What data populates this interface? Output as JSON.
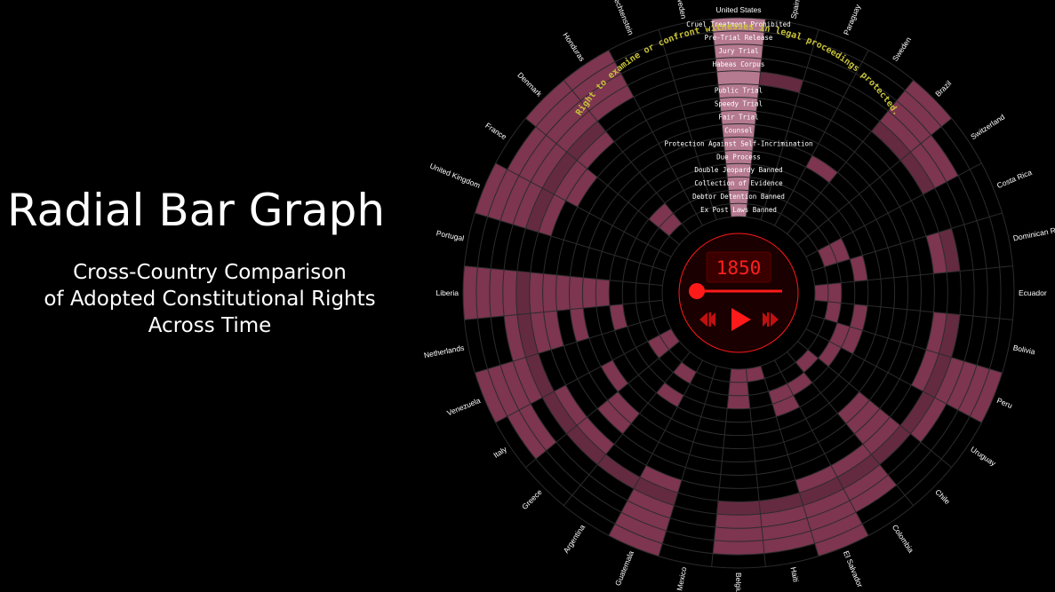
{
  "header": {
    "title": "Radial Bar Graph",
    "subtitle_lines": [
      "Cross-Country Comparison",
      "of Adopted Constitutional Rights",
      "Across Time"
    ]
  },
  "player": {
    "year": "1850",
    "slider_value": 0,
    "controls": [
      "step-back",
      "play",
      "step-forward"
    ]
  },
  "highlight": {
    "text": "Right to examine or confront witnesses in legal proceedings protected."
  },
  "colors": {
    "bar": "#7d3550",
    "bar_light": "#b57a90",
    "grid": "#2b2b2b",
    "highlight_ring": "#3c3c3c",
    "player_red": "#ff1a1a",
    "player_bg": "#3a0000",
    "highlight_text": "#c8c23a"
  },
  "chart_data": {
    "type": "radial-bar",
    "year": 1850,
    "countries": [
      "United States",
      "Spain",
      "Paraguay",
      "Sweden",
      "Brazil",
      "Switzerland",
      "Costa Rica",
      "Dominican Republic",
      "Ecuador",
      "Bolivia",
      "Peru",
      "Uruguay",
      "Chile",
      "Colombia",
      "El Salvador",
      "Haiti",
      "Belgium",
      "Mexico",
      "Guatemala",
      "Argentina",
      "Greece",
      "Italy",
      "Venezuela",
      "Netherlands",
      "Liberia",
      "Portugal",
      "United Kingdom",
      "France",
      "Denmark",
      "Honduras",
      "Liechtenstein",
      "Sweden"
    ],
    "rights": [
      "Cruel Treatment Prohibited",
      "Pre-Trial Release",
      "Jury Trial",
      "Habeas Corpus",
      "Right to examine or confront witnesses in legal proceedings protected.",
      "Public Trial",
      "Speedy Trial",
      "Fair Trial",
      "Counsel",
      "Protection Against Self-Incrimination",
      "Due Process",
      "Double Jeopardy Banned",
      "Collection of Evidence",
      "Debtor Detention Banned",
      "Ex Post Laws Banned"
    ],
    "highlighted_right": "Right to examine or confront witnesses in legal proceedings protected.",
    "adopted": [
      [
        1,
        1,
        1,
        1,
        1,
        1,
        1,
        1,
        1,
        1,
        1,
        1,
        1,
        1,
        1
      ],
      [
        0,
        0,
        0,
        0,
        1,
        0,
        0,
        0,
        0,
        0,
        0,
        0,
        0,
        0,
        0
      ],
      [
        0,
        0,
        0,
        0,
        0,
        0,
        0,
        0,
        0,
        0,
        0,
        0,
        0,
        0,
        0
      ],
      [
        0,
        0,
        0,
        0,
        0,
        0,
        0,
        0,
        0,
        1,
        0,
        0,
        0,
        0,
        0
      ],
      [
        1,
        1,
        1,
        1,
        1,
        0,
        0,
        0,
        0,
        0,
        0,
        0,
        0,
        0,
        0
      ],
      [
        0,
        0,
        1,
        1,
        1,
        0,
        0,
        0,
        0,
        0,
        0,
        0,
        0,
        0,
        0
      ],
      [
        0,
        0,
        0,
        0,
        0,
        0,
        0,
        0,
        0,
        0,
        0,
        0,
        1,
        1,
        0
      ],
      [
        0,
        0,
        0,
        0,
        1,
        1,
        0,
        0,
        0,
        0,
        0,
        1,
        0,
        0,
        0
      ],
      [
        0,
        0,
        0,
        0,
        0,
        0,
        0,
        0,
        0,
        0,
        0,
        0,
        0,
        1,
        1
      ],
      [
        0,
        0,
        0,
        0,
        1,
        1,
        0,
        0,
        0,
        0,
        0,
        1,
        0,
        1,
        0
      ],
      [
        1,
        1,
        1,
        1,
        1,
        1,
        0,
        0,
        0,
        0,
        0,
        1,
        1,
        0,
        0
      ],
      [
        0,
        0,
        0,
        1,
        1,
        0,
        0,
        0,
        0,
        0,
        0,
        0,
        1,
        0,
        0
      ],
      [
        0,
        0,
        0,
        0,
        1,
        1,
        1,
        1,
        1,
        0,
        0,
        0,
        0,
        1,
        0
      ],
      [
        0,
        0,
        1,
        1,
        1,
        1,
        0,
        0,
        0,
        0,
        0,
        0,
        1,
        0,
        0
      ],
      [
        1,
        1,
        1,
        1,
        1,
        1,
        0,
        0,
        0,
        0,
        0,
        1,
        1,
        0,
        0
      ],
      [
        0,
        1,
        1,
        1,
        1,
        0,
        0,
        0,
        0,
        0,
        0,
        0,
        0,
        0,
        1
      ],
      [
        0,
        1,
        1,
        1,
        1,
        0,
        0,
        0,
        0,
        0,
        0,
        0,
        1,
        1,
        1
      ],
      [
        0,
        0,
        0,
        0,
        0,
        0,
        0,
        0,
        0,
        0,
        0,
        0,
        0,
        0,
        0
      ],
      [
        1,
        1,
        1,
        1,
        1,
        1,
        0,
        0,
        0,
        0,
        0,
        0,
        0,
        0,
        0
      ],
      [
        0,
        0,
        0,
        0,
        1,
        0,
        0,
        0,
        0,
        0,
        0,
        1,
        0,
        1,
        0
      ],
      [
        0,
        0,
        0,
        0,
        1,
        1,
        0,
        1,
        1,
        0,
        0,
        0,
        0,
        0,
        0
      ],
      [
        0,
        1,
        1,
        0,
        1,
        1,
        0,
        0,
        0,
        1,
        0,
        0,
        0,
        1,
        1
      ],
      [
        1,
        1,
        1,
        1,
        1,
        0,
        0,
        0,
        0,
        0,
        0,
        0,
        0,
        0,
        0
      ],
      [
        0,
        0,
        0,
        1,
        1,
        1,
        1,
        0,
        1,
        0,
        0,
        1,
        0,
        0,
        0
      ],
      [
        1,
        1,
        1,
        1,
        1,
        1,
        1,
        1,
        1,
        1,
        1,
        0,
        0,
        0,
        0
      ],
      [
        0,
        0,
        0,
        0,
        0,
        0,
        0,
        0,
        0,
        0,
        0,
        0,
        0,
        0,
        0
      ],
      [
        1,
        1,
        1,
        1,
        1,
        1,
        0,
        0,
        0,
        0,
        0,
        0,
        0,
        0,
        0
      ],
      [
        0,
        1,
        1,
        1,
        1,
        1,
        1,
        0,
        0,
        0,
        0,
        0,
        0,
        0,
        0
      ],
      [
        1,
        1,
        1,
        1,
        1,
        1,
        0,
        0,
        0,
        0,
        0,
        0,
        1,
        1,
        0
      ],
      [
        1,
        1,
        1,
        1,
        0,
        0,
        0,
        0,
        0,
        0,
        0,
        0,
        0,
        0,
        0
      ],
      [
        0,
        0,
        0,
        0,
        0,
        0,
        0,
        0,
        0,
        0,
        0,
        0,
        0,
        0,
        0
      ],
      [
        0,
        0,
        0,
        0,
        0,
        0,
        0,
        0,
        0,
        0,
        0,
        0,
        0,
        0,
        0
      ]
    ]
  }
}
